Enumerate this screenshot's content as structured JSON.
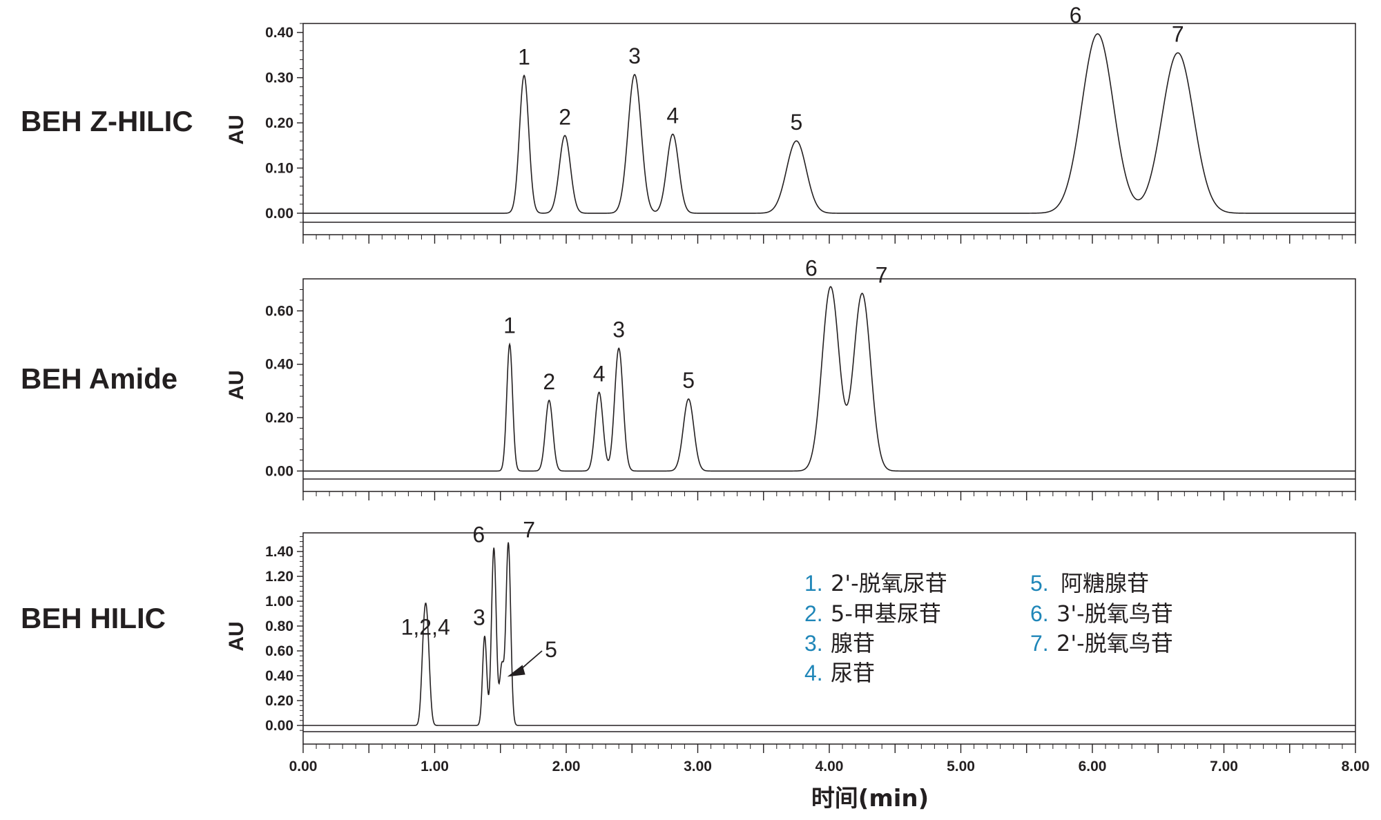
{
  "chart_data": [
    {
      "type": "line",
      "column": "BEH Z-HILIC",
      "ylabel": "AU",
      "xlim": [
        0,
        8
      ],
      "ylim": [
        -0.02,
        0.42
      ],
      "yticks": [
        "0.00",
        "0.10",
        "0.20",
        "0.30",
        "0.40"
      ],
      "baseline": 0.0,
      "peaks": [
        {
          "label": "1",
          "rt": 1.68,
          "height": 0.305,
          "width": 0.035
        },
        {
          "label": "2",
          "rt": 1.99,
          "height": 0.172,
          "width": 0.042
        },
        {
          "label": "3",
          "rt": 2.52,
          "height": 0.307,
          "width": 0.05
        },
        {
          "label": "4",
          "rt": 2.81,
          "height": 0.175,
          "width": 0.045
        },
        {
          "label": "5",
          "rt": 3.75,
          "height": 0.16,
          "width": 0.075
        },
        {
          "label": "6",
          "rt": 6.04,
          "height": 0.397,
          "width": 0.12
        },
        {
          "label": "7",
          "rt": 6.65,
          "height": 0.355,
          "width": 0.12
        }
      ]
    },
    {
      "type": "line",
      "column": "BEH Amide",
      "ylabel": "AU",
      "xlim": [
        0,
        8
      ],
      "ylim": [
        -0.03,
        0.72
      ],
      "yticks": [
        "0.00",
        "0.20",
        "0.40",
        "0.60"
      ],
      "baseline": 0.0,
      "peaks": [
        {
          "label": "1",
          "rt": 1.57,
          "height": 0.475,
          "width": 0.022
        },
        {
          "label": "2",
          "rt": 1.87,
          "height": 0.265,
          "width": 0.028
        },
        {
          "label": "4",
          "rt": 2.25,
          "height": 0.295,
          "width": 0.03
        },
        {
          "label": "3",
          "rt": 2.4,
          "height": 0.46,
          "width": 0.032
        },
        {
          "label": "5",
          "rt": 2.93,
          "height": 0.27,
          "width": 0.04
        },
        {
          "label": "6",
          "rt": 4.01,
          "height": 0.69,
          "width": 0.065
        },
        {
          "label": "7",
          "rt": 4.25,
          "height": 0.665,
          "width": 0.065
        }
      ]
    },
    {
      "type": "line",
      "column": "BEH HILIC",
      "ylabel": "AU",
      "xlim": [
        0,
        8
      ],
      "ylim": [
        -0.05,
        1.55
      ],
      "yticks": [
        "0.00",
        "0.20",
        "0.40",
        "0.60",
        "0.80",
        "1.00",
        "1.20",
        "1.40"
      ],
      "baseline": 0.0,
      "peaks": [
        {
          "label": "1,2,4",
          "rt": 0.93,
          "height": 0.63,
          "width": 0.018
        },
        {
          "label": "",
          "rt": 0.91,
          "height": 0.3,
          "width": 0.016
        },
        {
          "label": "",
          "rt": 0.95,
          "height": 0.4,
          "width": 0.018
        },
        {
          "label": "3",
          "rt": 1.38,
          "height": 0.72,
          "width": 0.016
        },
        {
          "label": "6",
          "rt": 1.45,
          "height": 1.43,
          "width": 0.018
        },
        {
          "label": "5",
          "rt": 1.51,
          "height": 0.47,
          "width": 0.016
        },
        {
          "label": "7",
          "rt": 1.56,
          "height": 1.47,
          "width": 0.018
        }
      ]
    }
  ],
  "x_axis": {
    "label": "时间(min)",
    "ticks": [
      "0.00",
      "1.00",
      "2.00",
      "3.00",
      "4.00",
      "5.00",
      "6.00",
      "7.00",
      "8.00"
    ]
  },
  "legend": [
    {
      "num": "1.",
      "name": "2'-脱氧尿苷"
    },
    {
      "num": "2.",
      "name": "5-甲基尿苷"
    },
    {
      "num": "3.",
      "name": "腺苷"
    },
    {
      "num": "4.",
      "name": "尿苷"
    },
    {
      "num": "5.",
      "name": "阿糖腺苷"
    },
    {
      "num": "6.",
      "name": "3'-脱氧鸟苷"
    },
    {
      "num": "7.",
      "name": "2'-脱氧鸟苷"
    }
  ],
  "colors": {
    "ink": "#231f20",
    "legend_number": "#1f86b8"
  }
}
